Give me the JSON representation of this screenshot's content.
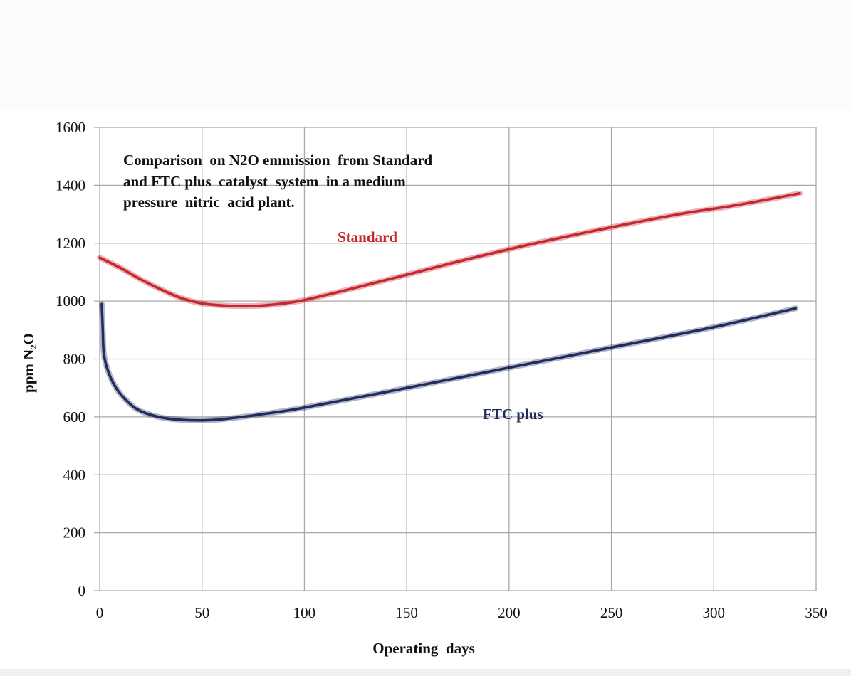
{
  "chart_data": {
    "type": "line",
    "title_lines": [
      "Comparison  on N2O emmission  from Standard",
      "and FTC plus  catalyst  system  in a medium",
      "pressure  nitric  acid plant."
    ],
    "xlabel": "Operating  days",
    "ylabel": "ppm N₂O",
    "xlim": [
      0,
      350
    ],
    "ylim": [
      0,
      1600
    ],
    "xticks": [
      0,
      50,
      100,
      150,
      200,
      250,
      300,
      350
    ],
    "yticks": [
      0,
      200,
      400,
      600,
      800,
      1000,
      1200,
      1400,
      1600
    ],
    "grid": true,
    "series": [
      {
        "name": "Standard",
        "color": "#c4272e",
        "x": [
          0,
          10,
          20,
          30,
          40,
          50,
          60,
          70,
          80,
          95,
          110,
          130,
          155,
          180,
          213,
          250,
          283,
          310,
          342
        ],
        "y": [
          1150,
          1115,
          1075,
          1040,
          1010,
          992,
          985,
          983,
          985,
          997,
          1020,
          1055,
          1100,
          1145,
          1200,
          1255,
          1300,
          1330,
          1372
        ]
      },
      {
        "name": "FTC plus",
        "color": "#202a5c",
        "x": [
          1,
          1.5,
          2,
          4,
          8,
          14,
          20,
          30,
          40,
          50,
          60,
          80,
          100,
          150,
          200,
          250,
          300,
          340
        ],
        "y": [
          990,
          900,
          820,
          760,
          700,
          650,
          620,
          598,
          590,
          588,
          592,
          610,
          632,
          700,
          770,
          840,
          910,
          975
        ]
      }
    ]
  }
}
